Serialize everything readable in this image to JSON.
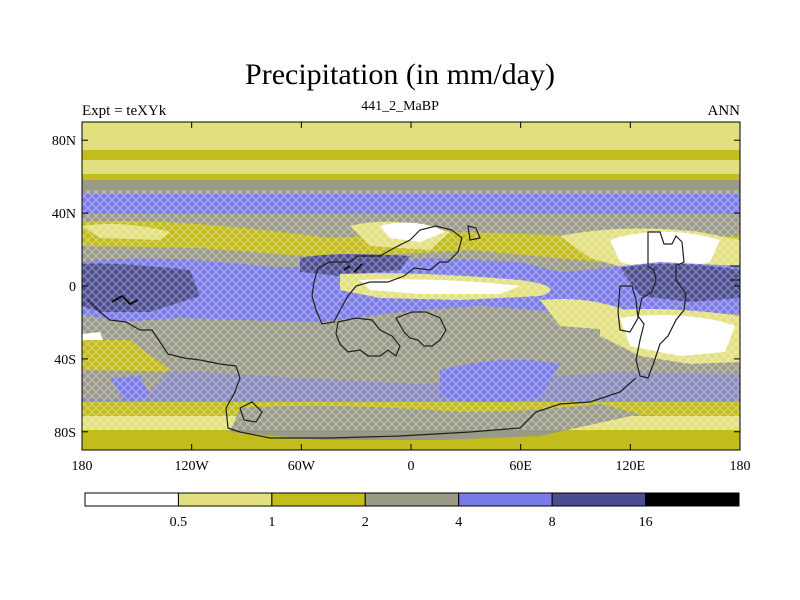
{
  "title": "Precipitation (in mm/day)",
  "subtitle_left": "Expt = teXYk",
  "subtitle_center": "441_2_MaBP",
  "subtitle_right": "ANN",
  "lat_ticks": [
    {
      "label": "80N",
      "lat": 80
    },
    {
      "label": "40N",
      "lat": 40
    },
    {
      "label": "0",
      "lat": 0
    },
    {
      "label": "40S",
      "lat": -40
    },
    {
      "label": "80S",
      "lat": -80
    }
  ],
  "lon_ticks": [
    {
      "label": "180",
      "lon": -180
    },
    {
      "label": "120W",
      "lon": -120
    },
    {
      "label": "60W",
      "lon": -60
    },
    {
      "label": "0",
      "lon": 0
    },
    {
      "label": "60E",
      "lon": 60
    },
    {
      "label": "120E",
      "lon": 120
    },
    {
      "label": "180",
      "lon": 180
    }
  ],
  "colorbar": {
    "colors": [
      "#ffffff",
      "#e2e07e",
      "#c2bc1c",
      "#9a9a88",
      "#7b7be8",
      "#4c4c90",
      "#000000"
    ],
    "labels": [
      "0.5",
      "1",
      "2",
      "4",
      "8",
      "16"
    ]
  },
  "palette": {
    "white": "#ffffff",
    "light_yellow": "#e2e07e",
    "olive": "#c2bc1c",
    "grey": "#9a9a88",
    "blue": "#7b7be8",
    "dark_blue": "#4c4c90",
    "black": "#000000"
  }
}
